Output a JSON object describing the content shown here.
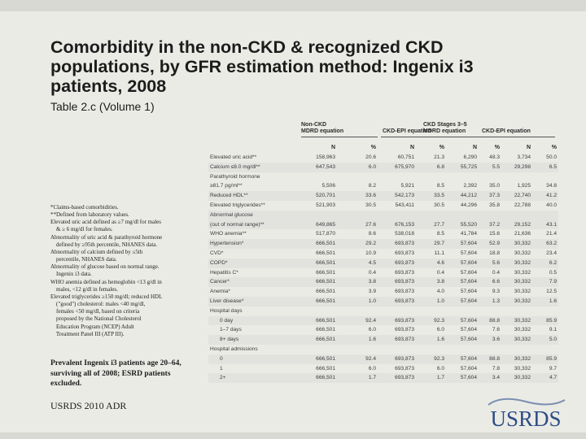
{
  "title": "Comorbidity in the non-CKD & recognized CKD populations, by GFR estimation method: Ingenix i3 patients, 2008",
  "subtitle": "Table 2.c (Volume 1)",
  "notes": [
    "*Claims-based comorbidities.",
    "**Defined from laboratory values.",
    "Elevated uric acid defined as ≥7 mg/dl for males",
    "    & ≥ 6 mg/dl for females.",
    "Abnormality of uric acid & parathyroid hormone",
    "    defined by ≥95th percentile, NHANES data.",
    "Abnormality of calcium defined by ≤5th",
    "    percentile, NHANES data.",
    "Abnormality of glucose based on normal range.",
    "    Ingenix i3 data.",
    "WHO anemia defined as hemoglobin <13 g/dl in",
    "    males, <12 g/dl in females.",
    "Elevated triglycerides ≥150 mg/dl; reduced HDL",
    "    (\"good\") cholesterol: males <40 mg/dl,",
    "    females <50 mg/dl, based on criteria",
    "    proposed by the National Cholesterol",
    "    Education Program (NCEP) Adult",
    "    Treatment Panel III (ATP III)."
  ],
  "caption": "Prevalent Ingenix i3 patients age 20–64, surviving all of 2008; ESRD patients excluded.",
  "source": "USRDS 2010 ADR",
  "logo_text": "USRDS",
  "table": {
    "group_headers": [
      {
        "label": "Non-CKD",
        "sub": "MDRD equation"
      },
      {
        "label": "",
        "sub": "CKD-EPI equation"
      },
      {
        "label": "CKD Stages 3–5",
        "sub": "MDRD equation"
      },
      {
        "label": "",
        "sub": "CKD-EPI equation"
      }
    ],
    "col_headers": [
      "N",
      "%",
      "N",
      "%",
      "N",
      "%",
      "N",
      "%"
    ],
    "rows": [
      {
        "label": "Elevated uric acid**",
        "values": [
          "158,963",
          "20.6",
          "60,751",
          "21.3",
          "6,290",
          "48.3",
          "3,734",
          "50.0"
        ],
        "indent": false,
        "shade": false
      },
      {
        "label": "Calcium ≤8.0 mg/dl**",
        "values": [
          "647,543",
          "6.0",
          "675,970",
          "6.8",
          "55,725",
          "5.5",
          "29,298",
          "6.5"
        ],
        "indent": false,
        "shade": true
      },
      {
        "label": "Parathyroid hormone\n≥81.7 pg/ml**",
        "values": [
          "5,506",
          "8.2",
          "5,921",
          "8.5",
          "2,392",
          "35.0",
          "1,925",
          "34.8"
        ],
        "indent": false,
        "shade": false,
        "tall": true
      },
      {
        "label": "Reduced HDL**",
        "values": [
          "520,701",
          "33.6",
          "542,173",
          "33.5",
          "44,212",
          "37.3",
          "22,740",
          "41.2"
        ],
        "indent": false,
        "shade": true
      },
      {
        "label": "Elevated triglycerides**",
        "values": [
          "521,903",
          "30.5",
          "543,411",
          "30.5",
          "44,296",
          "35.8",
          "22,788",
          "40.0"
        ],
        "indent": false,
        "shade": false
      },
      {
        "label": "Abnormal glucose\n(out of normal range)**",
        "values": [
          "649,865",
          "27.6",
          "676,153",
          "27.7",
          "55,520",
          "37.2",
          "29,152",
          "43.1"
        ],
        "indent": false,
        "shade": true,
        "tall": true
      },
      {
        "label": "WHO anemia**",
        "values": [
          "517,870",
          "8.6",
          "538,018",
          "8.5",
          "41,784",
          "15.6",
          "21,636",
          "21.4"
        ],
        "indent": false,
        "shade": false
      },
      {
        "label": "Hypertension*",
        "values": [
          "666,501",
          "29.2",
          "693,873",
          "29.7",
          "57,604",
          "52.9",
          "30,332",
          "63.2"
        ],
        "indent": false,
        "shade": true
      },
      {
        "label": "CVD*",
        "values": [
          "666,501",
          "10.9",
          "693,873",
          "11.1",
          "57,604",
          "18.8",
          "30,332",
          "23.4"
        ],
        "indent": false,
        "shade": false
      },
      {
        "label": "COPD*",
        "values": [
          "666,501",
          "4.5",
          "693,873",
          "4.6",
          "57,604",
          "5.6",
          "30,332",
          "6.2"
        ],
        "indent": false,
        "shade": true
      },
      {
        "label": "Hepatitis C*",
        "values": [
          "666,501",
          "0.4",
          "693,873",
          "0.4",
          "57,604",
          "0.4",
          "30,332",
          "0.5"
        ],
        "indent": false,
        "shade": false
      },
      {
        "label": "Cancer*",
        "values": [
          "666,501",
          "3.8",
          "693,873",
          "3.8",
          "57,604",
          "6.6",
          "30,332",
          "7.9"
        ],
        "indent": false,
        "shade": true
      },
      {
        "label": "Anemia*",
        "values": [
          "666,501",
          "3.9",
          "693,873",
          "4.0",
          "57,604",
          "9.3",
          "30,332",
          "12.5"
        ],
        "indent": false,
        "shade": false
      },
      {
        "label": "Liver disease*",
        "values": [
          "666,501",
          "1.0",
          "693,873",
          "1.0",
          "57,604",
          "1.3",
          "30,332",
          "1.6"
        ],
        "indent": false,
        "shade": true
      },
      {
        "label": "Hospital days",
        "values": [
          "",
          "",
          "",
          "",
          "",
          "",
          "",
          ""
        ],
        "indent": false,
        "shade": false
      },
      {
        "label": "0 day",
        "values": [
          "666,501",
          "92.4",
          "693,873",
          "92.3",
          "57,604",
          "88.8",
          "30,332",
          "85.9"
        ],
        "indent": true,
        "shade": true
      },
      {
        "label": "1–7 days",
        "values": [
          "666,501",
          "6.0",
          "693,873",
          "6.0",
          "57,604",
          "7.6",
          "30,332",
          "9.1"
        ],
        "indent": true,
        "shade": false
      },
      {
        "label": "8+ days",
        "values": [
          "666,501",
          "1.6",
          "693,873",
          "1.6",
          "57,604",
          "3.6",
          "30,332",
          "5.0"
        ],
        "indent": true,
        "shade": true
      },
      {
        "label": "Hospital admissions",
        "values": [
          "",
          "",
          "",
          "",
          "",
          "",
          "",
          ""
        ],
        "indent": false,
        "shade": false
      },
      {
        "label": "0",
        "values": [
          "666,501",
          "92.4",
          "693,873",
          "92.3",
          "57,604",
          "88.8",
          "30,332",
          "85.9"
        ],
        "indent": true,
        "shade": true
      },
      {
        "label": "1",
        "values": [
          "666,501",
          "6.0",
          "693,873",
          "6.0",
          "57,604",
          "7.8",
          "30,332",
          "9.7"
        ],
        "indent": true,
        "shade": false
      },
      {
        "label": "2+",
        "values": [
          "666,501",
          "1.7",
          "693,873",
          "1.7",
          "57,604",
          "3.4",
          "30,332",
          "4.7"
        ],
        "indent": true,
        "shade": true
      }
    ]
  }
}
